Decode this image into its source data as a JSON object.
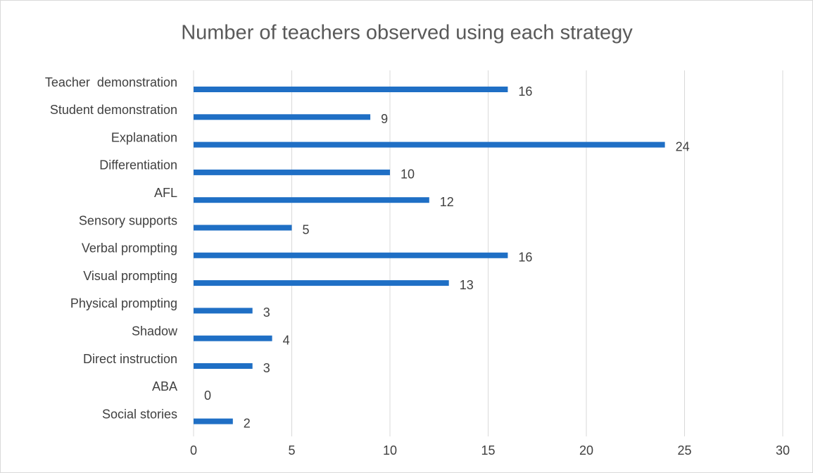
{
  "chart_data": {
    "type": "bar",
    "title": "Number of teachers observed using each strategy",
    "categories": [
      "Teacher  demonstration",
      "Student demonstration",
      "Explanation",
      "Differentiation",
      "AFL",
      "Sensory supports",
      "Verbal prompting",
      "Visual prompting",
      "Physical prompting",
      "Shadow",
      "Direct instruction",
      "ABA",
      "Social stories"
    ],
    "values": [
      16,
      9,
      24,
      10,
      12,
      5,
      16,
      13,
      3,
      4,
      3,
      0,
      2
    ],
    "color": "#1f6fc5",
    "xlim": [
      0,
      30
    ],
    "xticks": [
      0,
      5,
      10,
      15,
      20,
      25,
      30
    ],
    "grid": true
  }
}
